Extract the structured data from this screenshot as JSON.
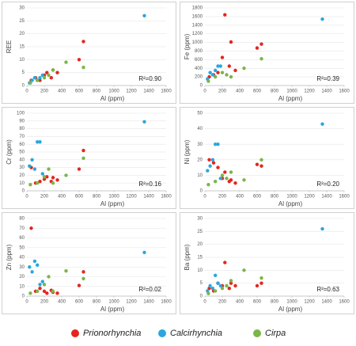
{
  "chart_data": [
    {
      "type": "scatter",
      "x_label": "Al (ppm)",
      "y_label": "REE",
      "xlim": [
        0,
        1600
      ],
      "xticks": [
        0,
        200,
        400,
        600,
        800,
        1000,
        1200,
        1400,
        1600
      ],
      "ylim": [
        0,
        30
      ],
      "yticks": [
        0,
        5,
        10,
        15,
        20,
        25,
        30
      ],
      "annotation": "R²=0.90",
      "series": [
        {
          "name": "Prionorhynchia",
          "color": "#e3261f",
          "x": [
            50,
            100,
            150,
            200,
            230,
            280,
            300,
            350,
            600,
            650
          ],
          "values": [
            2,
            3,
            2,
            4,
            5,
            3,
            6,
            5,
            10,
            17
          ]
        },
        {
          "name": "Calcirhynchia",
          "color": "#2ba6de",
          "x": [
            30,
            60,
            90,
            120,
            150,
            180,
            1350
          ],
          "values": [
            1,
            2,
            3,
            2,
            3,
            4,
            27
          ]
        },
        {
          "name": "Cirpa",
          "color": "#7ab648",
          "x": [
            40,
            120,
            200,
            250,
            300,
            450,
            650
          ],
          "values": [
            1,
            2,
            3,
            4,
            6,
            9,
            7
          ]
        }
      ]
    },
    {
      "type": "scatter",
      "x_label": "Al (ppm)",
      "y_label": "Fe (ppm)",
      "xlim": [
        0,
        1600
      ],
      "xticks": [
        0,
        200,
        400,
        600,
        800,
        1000,
        1200,
        1400,
        1600
      ],
      "ylim": [
        0,
        1800
      ],
      "yticks": [
        0,
        200,
        400,
        600,
        800,
        1000,
        1200,
        1400,
        1600,
        1800
      ],
      "annotation": "R²=0.39",
      "series": [
        {
          "color": "#e3261f",
          "x": [
            50,
            100,
            150,
            200,
            230,
            280,
            300,
            350,
            600,
            650
          ],
          "values": [
            200,
            250,
            300,
            650,
            1640,
            450,
            1010,
            350,
            870,
            960
          ]
        },
        {
          "color": "#2ba6de",
          "x": [
            30,
            60,
            90,
            120,
            150,
            180,
            1350
          ],
          "values": [
            150,
            300,
            250,
            350,
            450,
            450,
            1540
          ]
        },
        {
          "color": "#7ab648",
          "x": [
            40,
            120,
            200,
            250,
            300,
            450,
            650
          ],
          "values": [
            100,
            200,
            300,
            250,
            200,
            400,
            620
          ]
        }
      ]
    },
    {
      "type": "scatter",
      "x_label": "Al (ppm)",
      "y_label": "Cr (ppm)",
      "xlim": [
        0,
        1600
      ],
      "xticks": [
        0,
        200,
        400,
        600,
        800,
        1000,
        1200,
        1400,
        1600
      ],
      "ylim": [
        0,
        100
      ],
      "yticks": [
        0,
        10,
        20,
        30,
        40,
        50,
        60,
        70,
        80,
        90,
        100
      ],
      "annotation": "R²=0.16",
      "series": [
        {
          "color": "#e3261f",
          "x": [
            50,
            100,
            150,
            200,
            230,
            280,
            300,
            350,
            600,
            650
          ],
          "values": [
            30,
            10,
            12,
            15,
            18,
            12,
            17,
            14,
            28,
            52
          ]
        },
        {
          "color": "#2ba6de",
          "x": [
            30,
            60,
            90,
            120,
            150,
            180,
            1350
          ],
          "values": [
            32,
            40,
            28,
            63,
            63,
            22,
            89
          ]
        },
        {
          "color": "#7ab648",
          "x": [
            40,
            120,
            200,
            250,
            300,
            450,
            650
          ],
          "values": [
            8,
            10,
            18,
            28,
            10,
            20,
            42
          ]
        }
      ]
    },
    {
      "type": "scatter",
      "x_label": "Al (ppm)",
      "y_label": "Ni (ppm)",
      "xlim": [
        0,
        1600
      ],
      "xticks": [
        0,
        200,
        400,
        600,
        800,
        1000,
        1200,
        1400,
        1600
      ],
      "ylim": [
        0,
        50
      ],
      "yticks": [
        0,
        10,
        20,
        30,
        40,
        50
      ],
      "annotation": "R²=0.20",
      "series": [
        {
          "color": "#e3261f",
          "x": [
            50,
            100,
            150,
            200,
            230,
            280,
            300,
            350,
            600,
            650
          ],
          "values": [
            20,
            18,
            15,
            8,
            12,
            6,
            7,
            5,
            17,
            16
          ]
        },
        {
          "color": "#2ba6de",
          "x": [
            30,
            60,
            90,
            120,
            150,
            180,
            1350
          ],
          "values": [
            13,
            16,
            20,
            30,
            30,
            8,
            43
          ]
        },
        {
          "color": "#7ab648",
          "x": [
            40,
            120,
            200,
            250,
            300,
            450,
            650
          ],
          "values": [
            4,
            6,
            10,
            8,
            12,
            7,
            20
          ]
        }
      ]
    },
    {
      "type": "scatter",
      "x_label": "Al (ppm)",
      "y_label": "Zn (ppm)",
      "xlim": [
        0,
        1600
      ],
      "xticks": [
        0,
        200,
        400,
        600,
        800,
        1000,
        1200,
        1400,
        1600
      ],
      "ylim": [
        0,
        80
      ],
      "yticks": [
        0,
        10,
        20,
        30,
        40,
        50,
        60,
        70,
        80
      ],
      "annotation": "R²=0.02",
      "series": [
        {
          "color": "#e3261f",
          "x": [
            50,
            100,
            150,
            200,
            230,
            280,
            300,
            350,
            600,
            650
          ],
          "values": [
            70,
            5,
            8,
            5,
            3,
            6,
            4,
            3,
            11,
            25
          ]
        },
        {
          "color": "#2ba6de",
          "x": [
            30,
            60,
            90,
            120,
            150,
            180,
            1350
          ],
          "values": [
            30,
            25,
            36,
            32,
            12,
            15,
            45
          ]
        },
        {
          "color": "#7ab648",
          "x": [
            40,
            120,
            200,
            250,
            300,
            450,
            650
          ],
          "values": [
            3,
            5,
            12,
            20,
            5,
            26,
            18
          ]
        }
      ]
    },
    {
      "type": "scatter",
      "x_label": "Al (ppm)",
      "y_label": "Ba (ppm)",
      "xlim": [
        0,
        1600
      ],
      "xticks": [
        0,
        200,
        400,
        600,
        800,
        1000,
        1200,
        1400,
        1600
      ],
      "ylim": [
        0,
        30
      ],
      "yticks": [
        0,
        5,
        10,
        15,
        20,
        25,
        30
      ],
      "annotation": "R²=0.63",
      "series": [
        {
          "color": "#e3261f",
          "x": [
            50,
            100,
            150,
            200,
            230,
            280,
            300,
            350,
            600,
            650
          ],
          "values": [
            3,
            2,
            5,
            4,
            13,
            3,
            5,
            4,
            4,
            5
          ]
        },
        {
          "color": "#2ba6de",
          "x": [
            30,
            60,
            90,
            120,
            150,
            180,
            1350
          ],
          "values": [
            2,
            4,
            3,
            8,
            5,
            4,
            26
          ]
        },
        {
          "color": "#7ab648",
          "x": [
            40,
            120,
            200,
            250,
            300,
            450,
            650
          ],
          "values": [
            1,
            2,
            3,
            4,
            6,
            10,
            7
          ]
        }
      ]
    }
  ]
}
